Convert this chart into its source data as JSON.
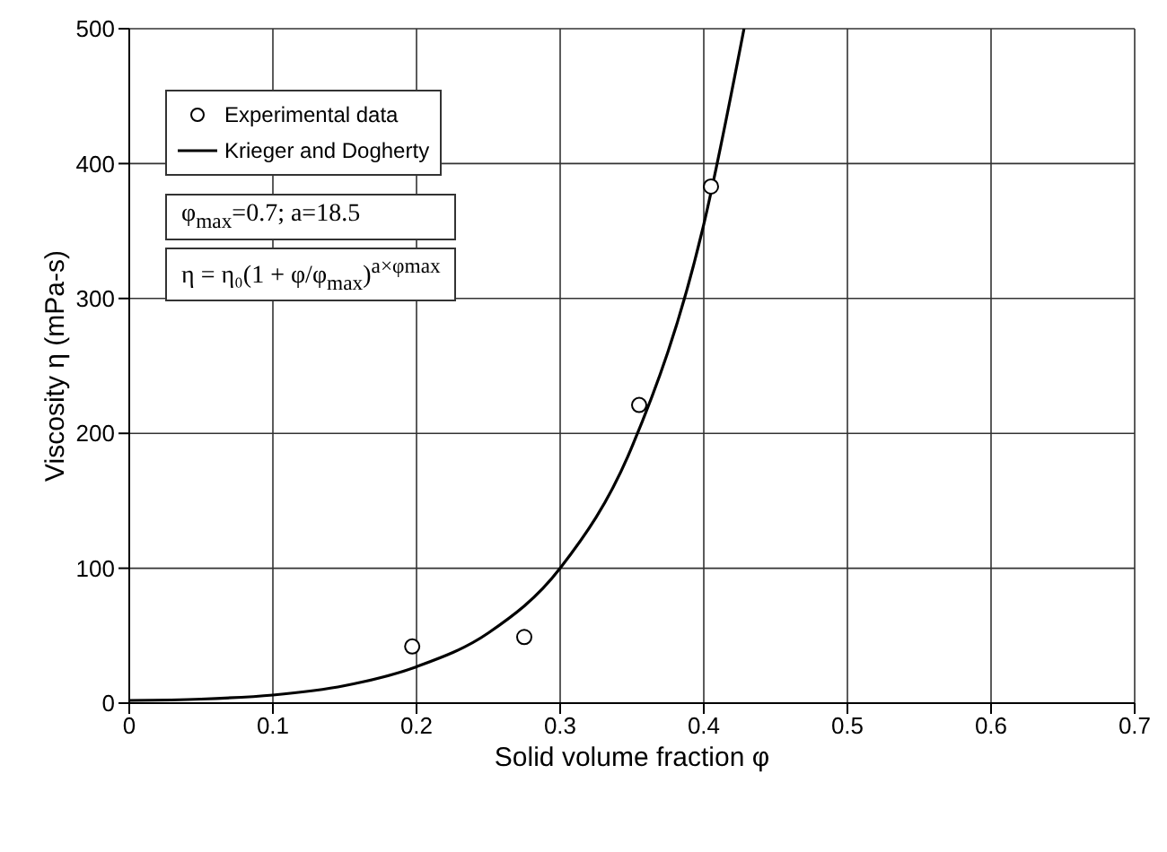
{
  "chart_data": {
    "type": "scatter",
    "xlabel": "Solid volume fraction φ",
    "ylabel": "Viscosity η (mPa-s)",
    "xlim": [
      0,
      0.7
    ],
    "xticks": [
      0,
      0.1,
      0.2,
      0.3,
      0.4,
      0.5,
      0.6,
      0.7
    ],
    "ylim": [
      0,
      500
    ],
    "yticks": [
      0,
      100,
      200,
      300,
      400,
      500
    ],
    "grid": true,
    "legend": "top left",
    "series": [
      {
        "name": "Experimental data",
        "marker": "circle",
        "color": "#000000",
        "x": [
          0.197,
          0.275,
          0.355,
          0.405
        ],
        "values": [
          42,
          49,
          221,
          383
        ]
      },
      {
        "name": "Krieger and Dogherty",
        "type": "line",
        "marker": "none",
        "color": "#000000",
        "x": [
          0,
          0.05,
          0.1,
          0.15,
          0.2,
          0.25,
          0.3,
          0.35,
          0.4,
          0.428
        ],
        "values": [
          2,
          3,
          6,
          13,
          27,
          52,
          100,
          190,
          355,
          500
        ]
      }
    ],
    "annotations": [
      "φ$_{max}$=0.7; a=18.5",
      "η = η₀(1 + φ/φ$_{max}$)$^{a×φmax}$"
    ]
  }
}
